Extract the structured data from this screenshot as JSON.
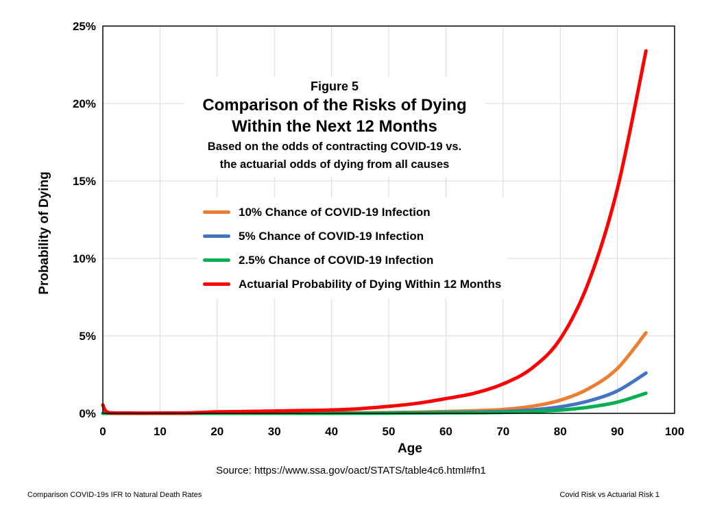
{
  "figure": {
    "number": "Figure 5",
    "title_line1": "Comparison of the Risks of Dying",
    "title_line2": "Within the Next 12 Months",
    "subtitle_line1": "Based on the odds of contracting COVID-19 vs.",
    "subtitle_line2": "the actuarial  odds of dying from all causes"
  },
  "source_text": "Source:  https://www.ssa.gov/oact/STATS/table4c6.html#fn1",
  "footer": {
    "left": "Comparison COVID-19s IFR to Natural Death Rates",
    "right": "Covid Risk vs Actuarial Risk 1"
  },
  "colors": {
    "orange": "#ED7D31",
    "blue": "#4472C4",
    "green": "#00B050",
    "red": "#FF0000",
    "grid": "#D9D9D9"
  },
  "chart_data": {
    "type": "line",
    "xlabel": "Age",
    "ylabel": "Probability of Dying",
    "xlim": [
      0,
      100
    ],
    "ylim": [
      0,
      25
    ],
    "x_ticks": [
      0,
      10,
      20,
      30,
      40,
      50,
      60,
      70,
      80,
      90,
      100
    ],
    "y_ticks": [
      0,
      5,
      10,
      15,
      20,
      25
    ],
    "y_tick_labels": [
      "0%",
      "5%",
      "10%",
      "15%",
      "20%",
      "25%"
    ],
    "grid": true,
    "legend_position": "center-left",
    "x": [
      0,
      1,
      5,
      10,
      15,
      20,
      25,
      30,
      35,
      40,
      45,
      50,
      55,
      60,
      65,
      70,
      75,
      80,
      85,
      90,
      95
    ],
    "series": [
      {
        "name": "10% Chance of COVID-19 Infection",
        "color_key": "orange",
        "values": [
          0.0,
          0.0,
          0.0,
          0.0,
          0.0,
          0.0,
          0.01,
          0.01,
          0.01,
          0.02,
          0.03,
          0.05,
          0.08,
          0.12,
          0.17,
          0.25,
          0.45,
          0.85,
          1.6,
          2.9,
          5.2
        ]
      },
      {
        "name": "5% Chance of COVID-19 Infection",
        "color_key": "blue",
        "values": [
          0.0,
          0.0,
          0.0,
          0.0,
          0.0,
          0.0,
          0.0,
          0.0,
          0.01,
          0.01,
          0.01,
          0.02,
          0.04,
          0.06,
          0.08,
          0.12,
          0.22,
          0.42,
          0.8,
          1.45,
          2.6
        ]
      },
      {
        "name": "2.5% Chance of COVID-19 Infection",
        "color_key": "green",
        "values": [
          0.0,
          0.0,
          0.0,
          0.0,
          0.0,
          0.0,
          0.0,
          0.0,
          0.0,
          0.0,
          0.01,
          0.01,
          0.02,
          0.03,
          0.04,
          0.06,
          0.11,
          0.21,
          0.4,
          0.72,
          1.3
        ]
      },
      {
        "name": "Actuarial Probability of Dying Within 12 Months",
        "color_key": "red",
        "values": [
          0.55,
          0.05,
          0.02,
          0.02,
          0.03,
          0.1,
          0.12,
          0.15,
          0.18,
          0.22,
          0.3,
          0.45,
          0.65,
          0.95,
          1.3,
          1.9,
          2.9,
          4.8,
          8.5,
          14.5,
          23.4
        ]
      }
    ]
  }
}
